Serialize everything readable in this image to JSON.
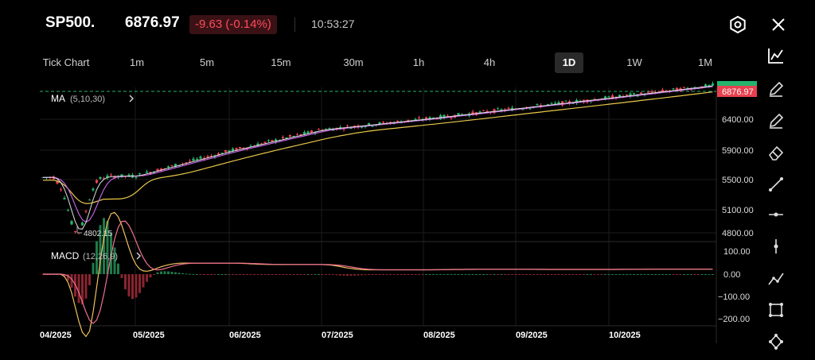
{
  "header": {
    "symbol": "SP500.",
    "price": "6876.97",
    "change": "-9.63 (-0.14%)",
    "time": "10:53:27",
    "icons": [
      "settings-icon",
      "close-icon"
    ]
  },
  "timeframes": [
    {
      "label": "Tick Chart",
      "active": false
    },
    {
      "label": "1m",
      "active": false
    },
    {
      "label": "5m",
      "active": false
    },
    {
      "label": "15m",
      "active": false
    },
    {
      "label": "30m",
      "active": false
    },
    {
      "label": "1h",
      "active": false
    },
    {
      "label": "4h",
      "active": false
    },
    {
      "label": "1D",
      "active": true
    },
    {
      "label": "1W",
      "active": false
    },
    {
      "label": "1M",
      "active": false
    }
  ],
  "main_panel": {
    "indicator_label": "MA",
    "indicator_params": "(5,10,30)",
    "current_price_tag": "6876.97",
    "low_label": "4802.15",
    "y_ticks": [
      "6400.00",
      "5900.00",
      "5500.00",
      "5100.00",
      "4800.00"
    ]
  },
  "macd_panel": {
    "label": "MACD",
    "params": "(12,26,9)",
    "y_ticks": [
      "100.00",
      "0.00",
      "−100.00",
      "−200.00"
    ]
  },
  "x_ticks": [
    "04/2025",
    "05/2025",
    "06/2025",
    "07/2025",
    "08/2025",
    "09/2025",
    "10/2025"
  ],
  "toolbar": [
    "line-chart-icon",
    "pencil-icon",
    "pencil-icon",
    "eraser-icon",
    "trend-line-icon",
    "horizontal-line-icon",
    "vertical-line-icon",
    "polyline-icon",
    "rectangle-icon",
    "pattern-icon"
  ],
  "colors": {
    "up": "#26b36c",
    "down": "#e8404e",
    "ma5": "#e0e0e0",
    "ma10": "#c060e0",
    "ma30": "#e8c84a",
    "macd_dif": "#f0c060",
    "macd_dea": "#f07090"
  },
  "chart_data": {
    "type": "candlestick",
    "period": "1D",
    "x_ticks": [
      "04/2025",
      "05/2025",
      "06/2025",
      "07/2025",
      "08/2025",
      "09/2025",
      "10/2025"
    ],
    "y_ticks": [
      6400,
      5900,
      5500,
      5100,
      4800
    ],
    "close_approx": [
      {
        "date": "04/2025",
        "value": 5580
      },
      {
        "date": "04/2025 low",
        "value": 4802.15
      },
      {
        "date": "05/2025",
        "value": 5600
      },
      {
        "date": "06/2025",
        "value": 5950
      },
      {
        "date": "07/2025",
        "value": 6250
      },
      {
        "date": "08/2025",
        "value": 6400
      },
      {
        "date": "09/2025",
        "value": 6550
      },
      {
        "date": "10/2025",
        "value": 6700
      },
      {
        "date": "last",
        "value": 6876.97
      }
    ],
    "moving_averages": [
      "MA5",
      "MA10",
      "MA30"
    ],
    "macd": {
      "params": "(12,26,9)",
      "y_ticks": [
        100,
        0,
        -100,
        -200
      ]
    }
  }
}
